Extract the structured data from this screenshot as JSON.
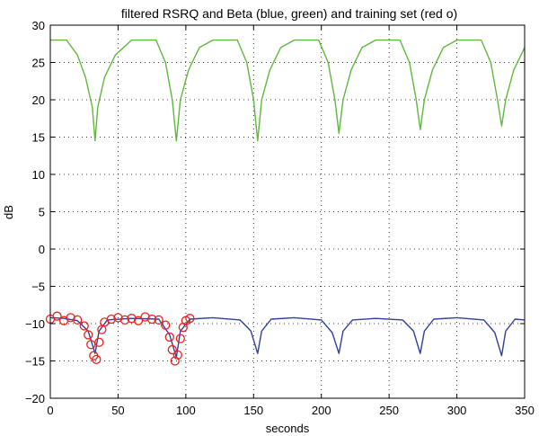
{
  "chart_data": {
    "type": "line",
    "title": "filtered RSRQ and Beta (blue, green) and training set (red o)",
    "xlabel": "seconds",
    "ylabel": "dB",
    "xlim": [
      0,
      350
    ],
    "ylim": [
      -20,
      30
    ],
    "xticks": [
      0,
      50,
      100,
      150,
      200,
      250,
      300,
      350
    ],
    "yticks": [
      -20,
      -15,
      -10,
      -5,
      0,
      5,
      10,
      15,
      20,
      25,
      30
    ],
    "grid": true,
    "grid_style": "dotted",
    "series": [
      {
        "color": "#2e3f9e",
        "style": "line",
        "x": [
          0,
          10,
          20,
          28,
          33,
          36,
          42,
          60,
          80,
          88,
          93,
          96,
          103,
          120,
          140,
          148,
          153,
          156,
          163,
          180,
          200,
          208,
          213,
          216,
          223,
          240,
          260,
          268,
          273,
          276,
          283,
          300,
          320,
          328,
          333,
          336,
          343,
          350
        ],
        "y": [
          -9.2,
          -9.3,
          -9.6,
          -11,
          -14,
          -11,
          -9.5,
          -9.3,
          -9.4,
          -11.5,
          -14.5,
          -11,
          -9.4,
          -9.2,
          -9.5,
          -11,
          -14,
          -11,
          -9.4,
          -9.2,
          -9.5,
          -11.2,
          -14,
          -11,
          -9.5,
          -9.3,
          -9.5,
          -11,
          -14,
          -11,
          -9.4,
          -9.2,
          -9.5,
          -11.2,
          -14.3,
          -11,
          -9.4,
          -9.5
        ]
      },
      {
        "color": "#5fb83c",
        "style": "line",
        "x": [
          0,
          12,
          20,
          26,
          31,
          33,
          35,
          40,
          48,
          60,
          78,
          85,
          90,
          93,
          96,
          102,
          110,
          120,
          138,
          145,
          150,
          153,
          156,
          162,
          170,
          180,
          198,
          205,
          210,
          213,
          216,
          222,
          230,
          240,
          258,
          265,
          270,
          273,
          276,
          282,
          290,
          300,
          318,
          325,
          330,
          333,
          336,
          342,
          350
        ],
        "y": [
          28,
          28,
          26,
          23,
          19,
          14.5,
          19,
          23,
          26,
          28,
          28,
          25,
          20,
          14.5,
          20,
          24,
          27,
          28,
          28,
          25,
          20,
          14.5,
          20,
          24,
          27,
          28,
          28,
          25,
          20,
          15.5,
          20,
          24,
          27,
          28,
          28,
          25,
          20,
          16,
          20,
          24,
          27,
          28,
          28,
          25,
          20,
          16.5,
          20,
          24,
          27
        ]
      },
      {
        "color": "#e8231f",
        "style": "markers",
        "marker": "o",
        "x": [
          0,
          5,
          10,
          15,
          20,
          25,
          28,
          30,
          32,
          34,
          36,
          38,
          40,
          45,
          50,
          55,
          60,
          65,
          70,
          75,
          80,
          85,
          88,
          90,
          92,
          94,
          96,
          98,
          100,
          103
        ],
        "y": [
          -9.4,
          -9,
          -9.6,
          -9.2,
          -9.5,
          -10.3,
          -11.5,
          -12.8,
          -14.3,
          -14.8,
          -12.5,
          -10.8,
          -9.8,
          -9.4,
          -9.2,
          -9.5,
          -9.3,
          -9.6,
          -9.1,
          -9.4,
          -9.5,
          -10.2,
          -11.8,
          -13.5,
          -15,
          -14.2,
          -12,
          -10.5,
          -9.6,
          -9.3
        ]
      }
    ]
  }
}
